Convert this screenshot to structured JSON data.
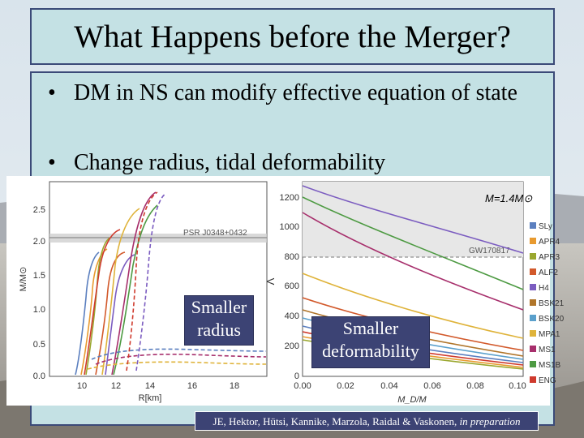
{
  "slide": {
    "title": "What Happens before the Merger?",
    "bullets": [
      "DM in NS can modify effective equation of state",
      "Change radius, tidal deformability"
    ],
    "bullet_symbol": "•"
  },
  "left_plot": {
    "ylabel": "M/M⊙",
    "xlabel": "R[km]",
    "x_ticks": [
      "10",
      "12",
      "14",
      "16",
      "18"
    ],
    "y_ticks": [
      "0.0",
      "0.5",
      "1.0",
      "1.5",
      "2.0",
      "2.5"
    ],
    "band_label": "PSR J0348+0432"
  },
  "right_plot": {
    "ylabel": "Λ",
    "xlabel": "M_D/M",
    "x_ticks": [
      "0.00",
      "0.02",
      "0.04",
      "0.06",
      "0.08",
      "0.10"
    ],
    "y_ticks": [
      "0",
      "200",
      "400",
      "600",
      "800",
      "1000",
      "1200"
    ],
    "title": "M=1.4M⊙",
    "gw_label": "GW170817"
  },
  "legend": [
    {
      "name": "SLy",
      "color": "#5b7fbf"
    },
    {
      "name": "APR4",
      "color": "#e89a2f"
    },
    {
      "name": "APR3",
      "color": "#9aa72e"
    },
    {
      "name": "ALF2",
      "color": "#d2592b"
    },
    {
      "name": "H4",
      "color": "#7b5cc0"
    },
    {
      "name": "BSK21",
      "color": "#b0752a"
    },
    {
      "name": "BSK20",
      "color": "#5aa0cc"
    },
    {
      "name": "MPA1",
      "color": "#dfb33a"
    },
    {
      "name": "MS1",
      "color": "#a72f6c"
    },
    {
      "name": "MS1B",
      "color": "#4d9a42"
    },
    {
      "name": "ENG",
      "color": "#cf3a2d"
    }
  ],
  "annotations": {
    "left": [
      "Smaller",
      "radius"
    ],
    "right": [
      "Smaller",
      "deformability"
    ]
  },
  "credit": {
    "authors": "JE, Hektor, Hütsi, Kannike, Marzola, Raidal & Vaskonen,",
    "status": "in preparation"
  }
}
